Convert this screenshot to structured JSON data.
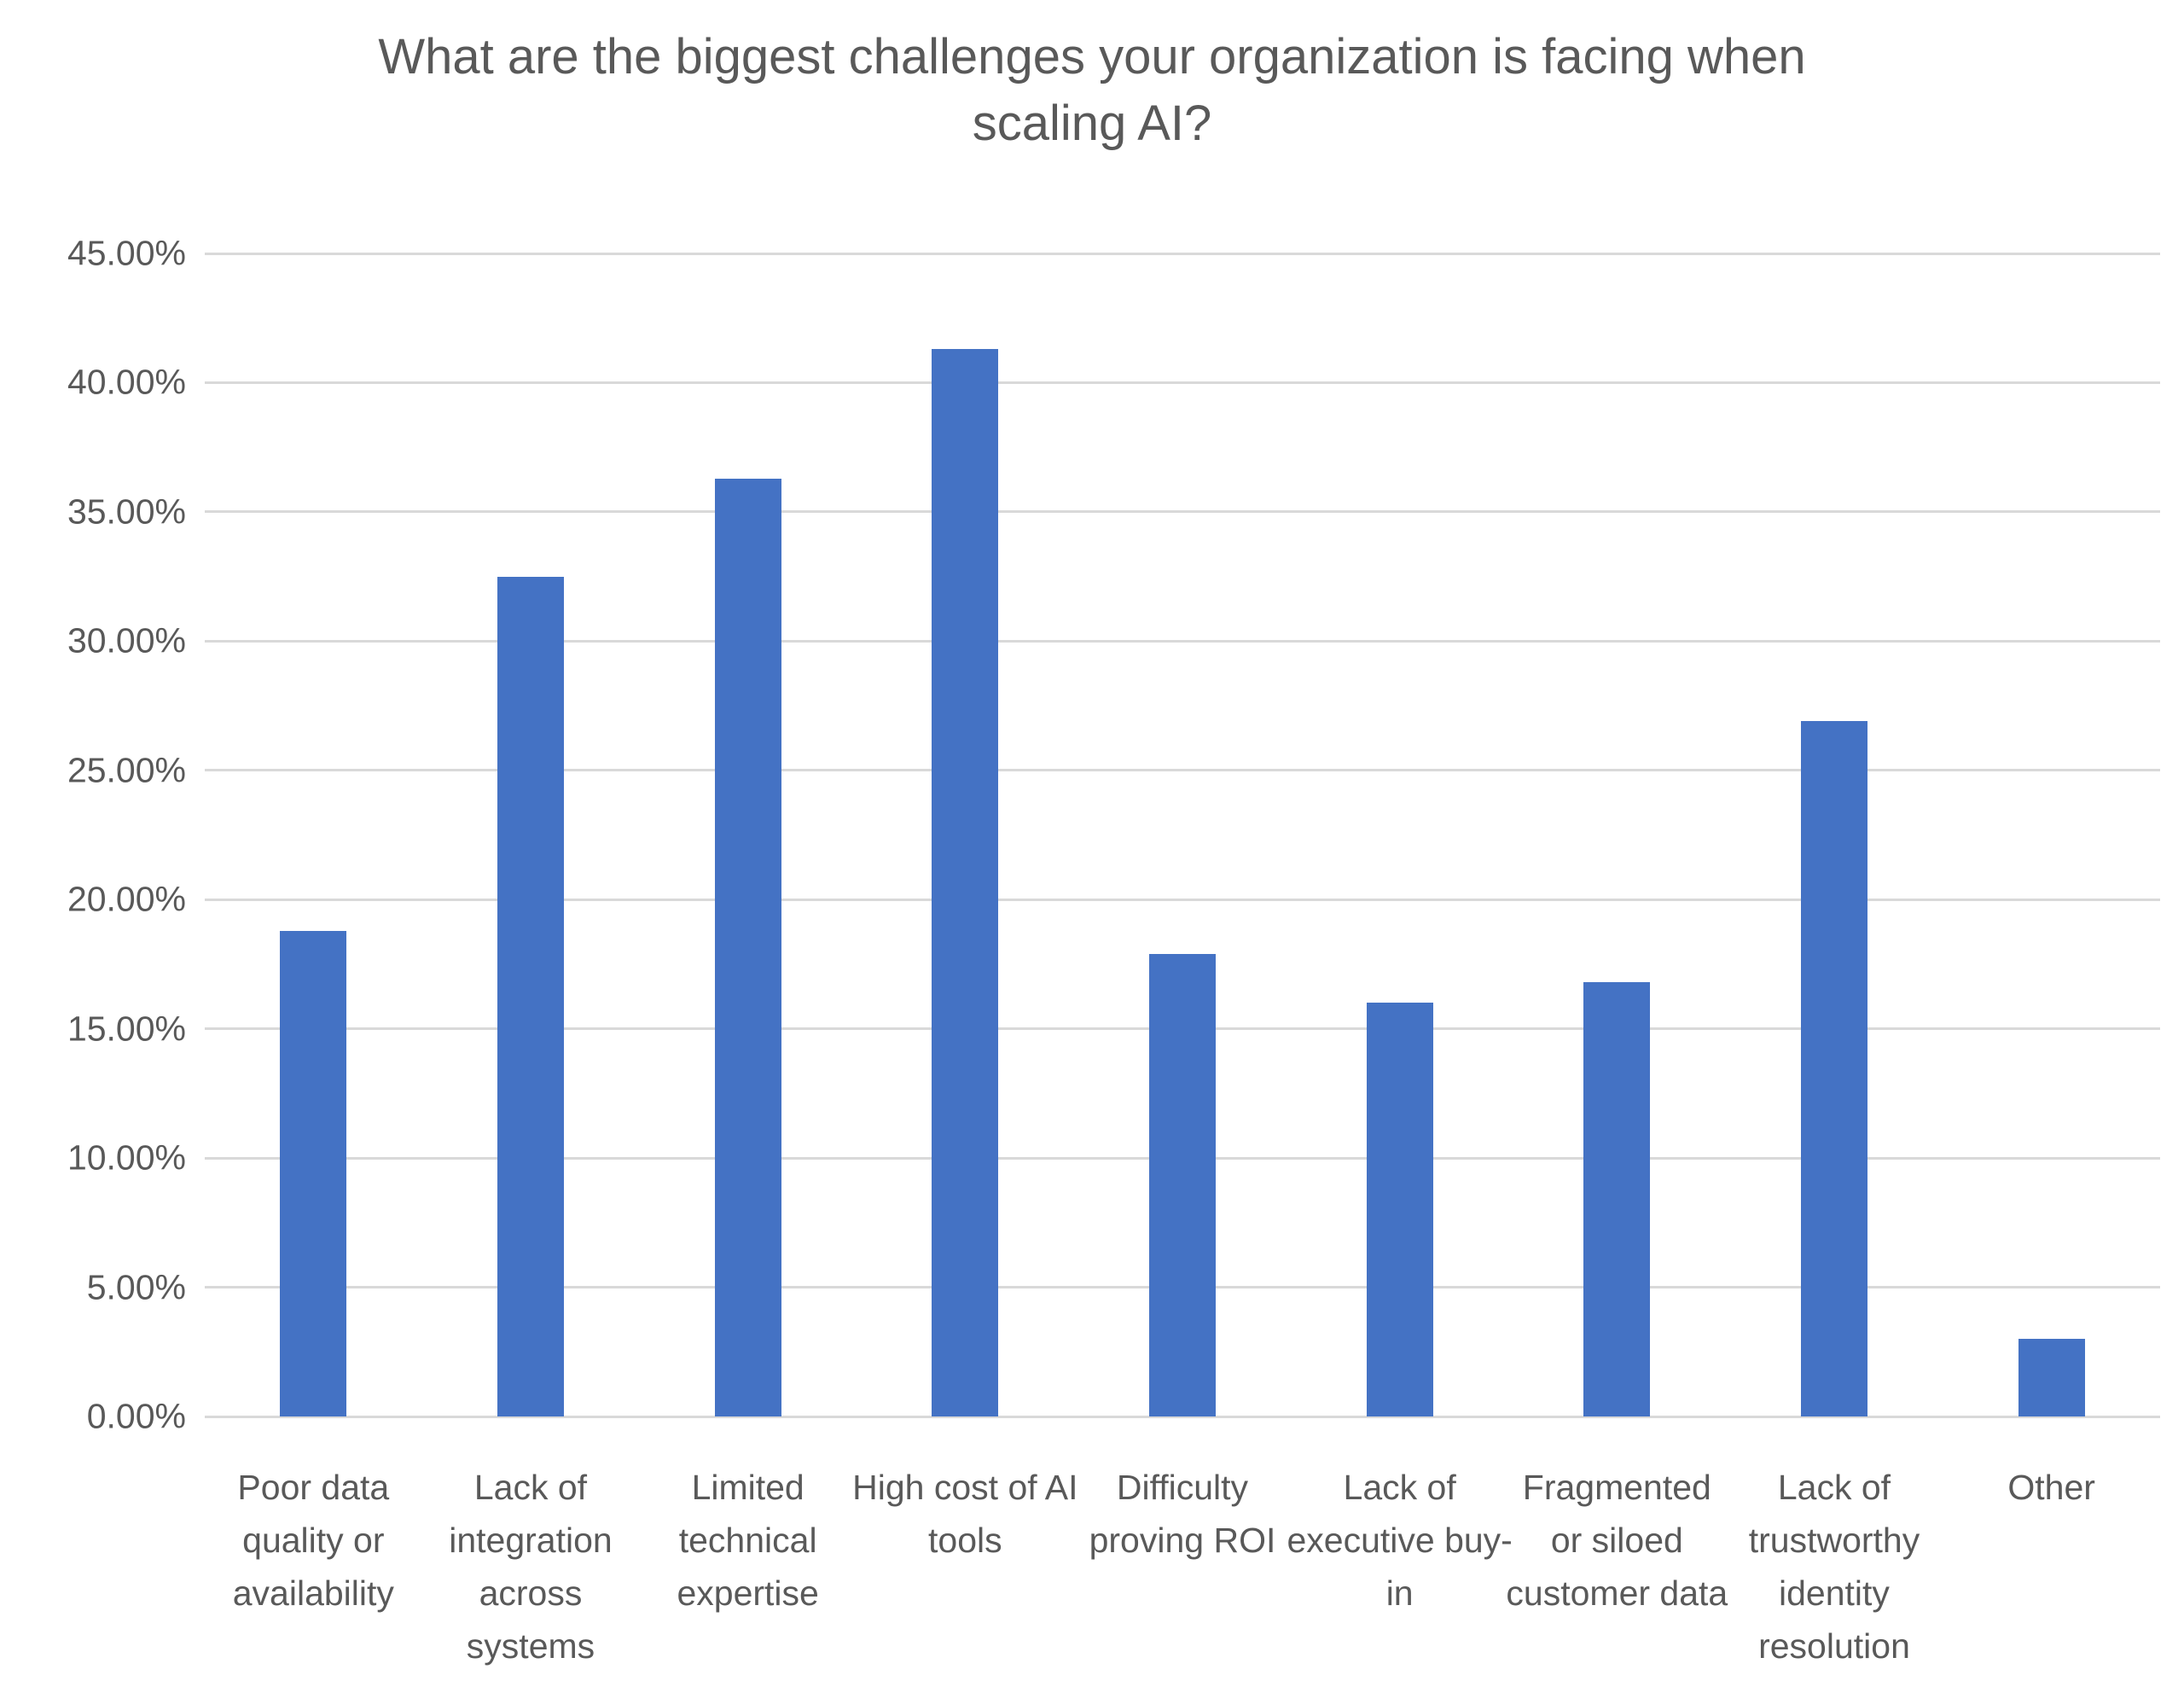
{
  "chart_data": {
    "type": "bar",
    "title": "What are the biggest challenges your organization is facing when scaling AI?",
    "categories": [
      "Poor data quality or availability",
      "Lack of integration across systems",
      "Limited technical expertise",
      "High cost of AI tools",
      "Difficulty proving ROI",
      "Lack of executive buy-in",
      "Fragmented or siloed customer data",
      "Lack of trustworthy identity resolution",
      "Other"
    ],
    "values": [
      18.8,
      32.5,
      36.3,
      41.3,
      17.9,
      16.0,
      16.8,
      26.9,
      3.0
    ],
    "xlabel": "",
    "ylabel": "",
    "ylim": [
      0,
      45
    ],
    "ytick_step": 5,
    "ytick_labels": [
      "0.00%",
      "5.00%",
      "10.00%",
      "15.00%",
      "20.00%",
      "25.00%",
      "30.00%",
      "35.00%",
      "40.00%",
      "45.00%"
    ],
    "grid": true,
    "legend": false,
    "bar_color": "#4472C4",
    "gridline_color": "#D9D9D9",
    "text_color": "#595959"
  }
}
